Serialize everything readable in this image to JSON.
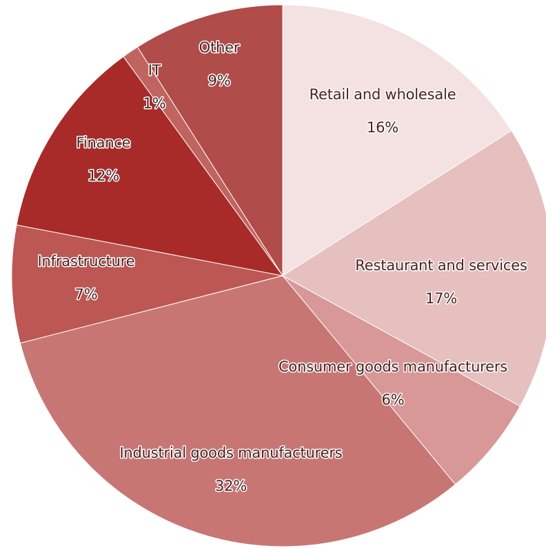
{
  "chart_data": {
    "type": "pie",
    "title": "",
    "start_angle_deg": 0,
    "direction": "clockwise",
    "slices": [
      {
        "label": "Retail and wholesale",
        "value": 16,
        "percent_text": "16%",
        "color": "#f4e1e1"
      },
      {
        "label": "Restaurant and services",
        "value": 17,
        "percent_text": "17%",
        "color": "#e5c0bf"
      },
      {
        "label": "Consumer goods manufacturers",
        "value": 6,
        "percent_text": "6%",
        "color": "#d89897"
      },
      {
        "label": "Industrial goods manufacturers",
        "value": 32,
        "percent_text": "32%",
        "color": "#c87674"
      },
      {
        "label": "Infrastructure",
        "value": 7,
        "percent_text": "7%",
        "color": "#bc5753"
      },
      {
        "label": "Finance",
        "value": 12,
        "percent_text": "12%",
        "color": "#a82b29"
      },
      {
        "label": "IT",
        "value": 1,
        "percent_text": "1%",
        "color": "#c06460"
      },
      {
        "label": "Other",
        "value": 9,
        "percent_text": "9%",
        "color": "#b04c49"
      }
    ]
  }
}
